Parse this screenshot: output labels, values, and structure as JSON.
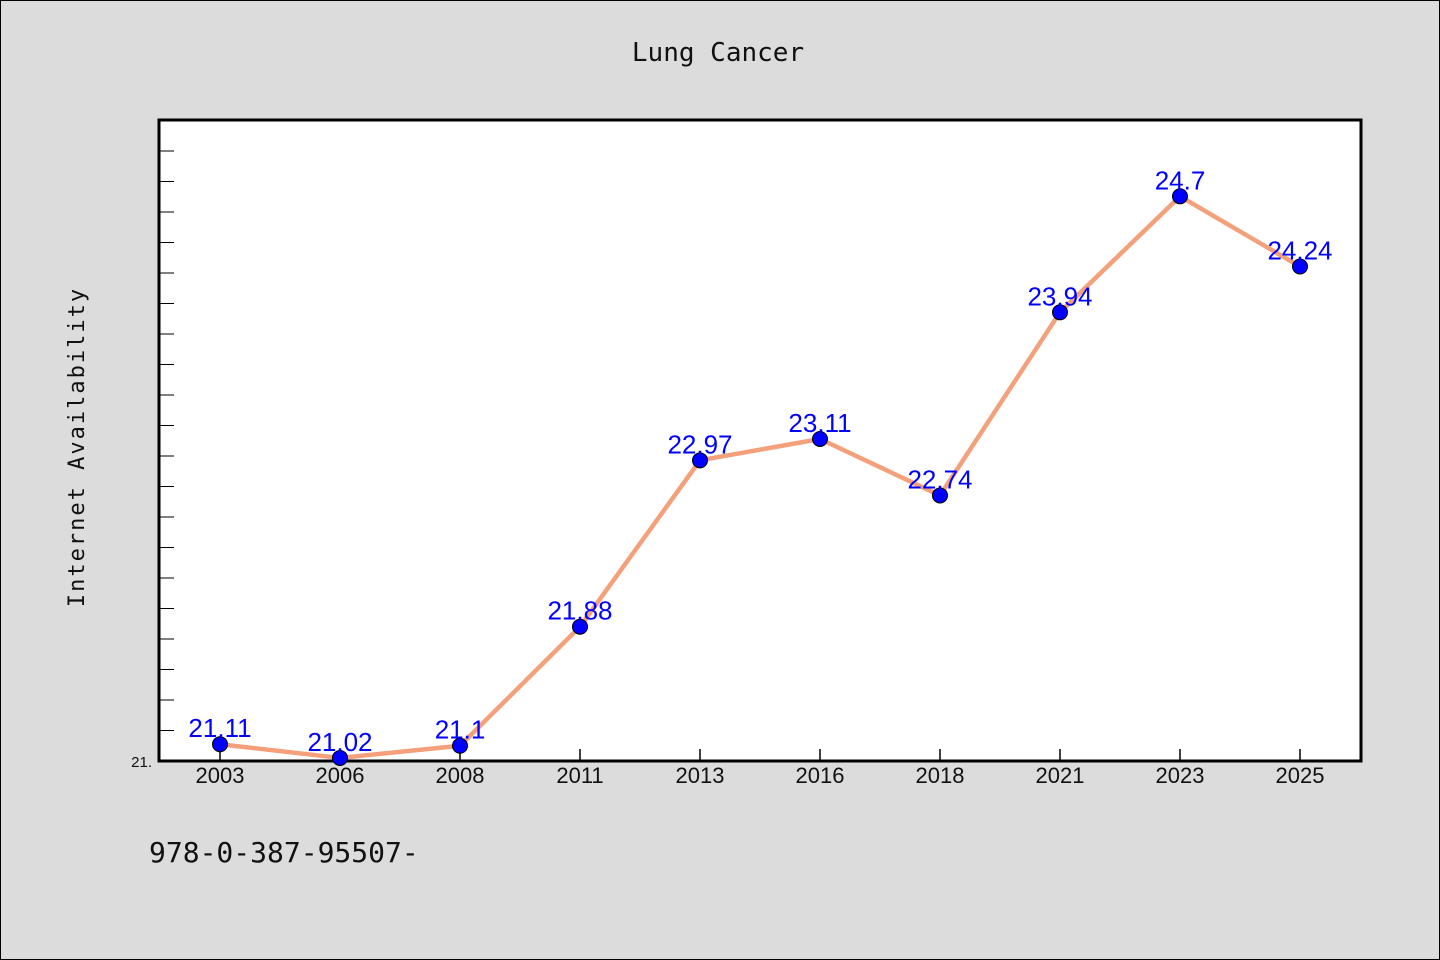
{
  "chart_data": {
    "type": "line",
    "title": "Lung Cancer",
    "xlabel": "",
    "ylabel": "Internet Availability",
    "categories": [
      "2003",
      "2006",
      "2008",
      "2011",
      "2013",
      "2016",
      "2018",
      "2021",
      "2023",
      "2025"
    ],
    "series": [
      {
        "values": [
          21.11,
          21.02,
          21.1,
          21.88,
          22.97,
          23.11,
          22.74,
          23.94,
          24.7,
          24.24
        ],
        "data_labels": [
          "21.11",
          "21.02",
          "21.1",
          "21.88",
          "22.97",
          "23.11",
          "22.74",
          "23.94",
          "24.7",
          "24.24"
        ]
      }
    ],
    "ylim": [
      21.0,
      25.2
    ],
    "y_tick_label": "21.",
    "grid": false,
    "legend": "none",
    "colors": {
      "line": "#f4a07a",
      "marker": "#0000ff",
      "data_label": "#0000ff",
      "background": "#dcdcdc",
      "plot_background": "#ffffff"
    }
  },
  "footer_text": "978-0-387-95507-"
}
